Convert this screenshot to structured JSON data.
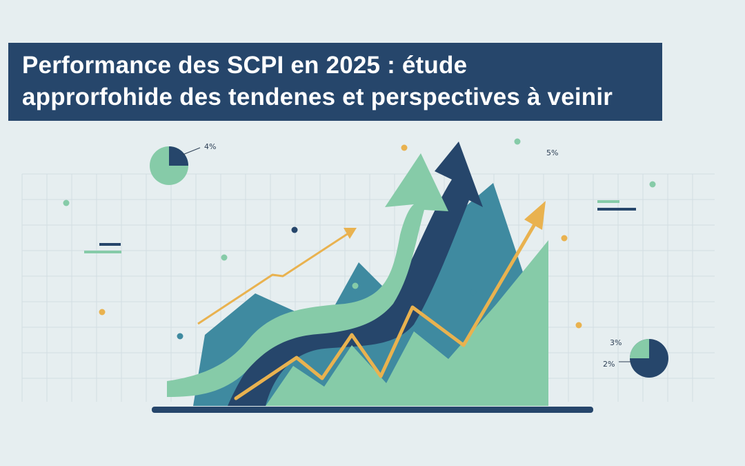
{
  "header": {
    "title_line_1": "Performance des SCPI en 2025 : étude",
    "title_line_2": "approrfohide des tendenes et perspectives à veinir"
  },
  "labels": {
    "pie_top_percent": "4%",
    "top_right_percent": "5%",
    "pie_right_top_percent": "3%",
    "pie_right_bottom_percent": "2%"
  },
  "colors": {
    "navy": "#26466b",
    "teal": "#3f8aa0",
    "mint": "#86cba8",
    "orange": "#e9b24f",
    "background": "#e6eef0",
    "grid": "#d3dde2"
  }
}
